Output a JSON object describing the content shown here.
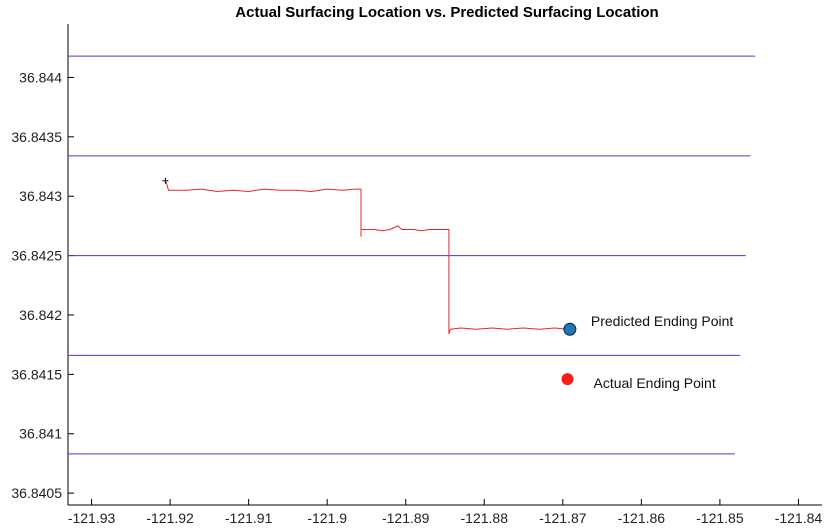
{
  "chart_data": {
    "type": "line",
    "title": "Actual Surfacing Location vs. Predicted Surfacing Location",
    "xlabel": "",
    "ylabel": "",
    "xlim": [
      -121.933,
      -121.837
    ],
    "ylim": [
      36.8404,
      36.84445
    ],
    "x_ticks": [
      {
        "value": -121.93,
        "label": "-121.93"
      },
      {
        "value": -121.92,
        "label": "-121.92"
      },
      {
        "value": -121.91,
        "label": "-121.91"
      },
      {
        "value": -121.9,
        "label": "-121.9"
      },
      {
        "value": -121.89,
        "label": "-121.89"
      },
      {
        "value": -121.88,
        "label": "-121.88"
      },
      {
        "value": -121.87,
        "label": "-121.87"
      },
      {
        "value": -121.86,
        "label": "-121.86"
      },
      {
        "value": -121.85,
        "label": "-121.85"
      },
      {
        "value": -121.84,
        "label": "-121.84"
      }
    ],
    "y_ticks": [
      {
        "value": 36.8405,
        "label": "36.8405"
      },
      {
        "value": 36.841,
        "label": "36.841"
      },
      {
        "value": 36.8415,
        "label": "36.8415"
      },
      {
        "value": 36.842,
        "label": "36.842"
      },
      {
        "value": 36.8425,
        "label": "36.8425"
      },
      {
        "value": 36.843,
        "label": "36.843"
      },
      {
        "value": 36.8435,
        "label": "36.8435"
      },
      {
        "value": 36.844,
        "label": "36.844"
      }
    ],
    "grid": false,
    "color_track": "#e8262b",
    "color_lane": "#3d3de0",
    "lanes": [
      {
        "y": 36.84418,
        "x_start": -121.933,
        "x_end": -121.8455
      },
      {
        "y": 36.84334,
        "x_start": -121.933,
        "x_end": -121.8461
      },
      {
        "y": 36.8425,
        "x_start": -121.933,
        "x_end": -121.8467
      },
      {
        "y": 36.84166,
        "x_start": -121.933,
        "x_end": -121.8474
      },
      {
        "y": 36.84083,
        "x_start": -121.933,
        "x_end": -121.8481
      }
    ],
    "track": [
      [
        -121.9205,
        36.84312
      ],
      [
        -121.9202,
        36.84305
      ],
      [
        -121.92,
        36.84305
      ],
      [
        -121.918,
        36.84305
      ],
      [
        -121.916,
        36.84306
      ],
      [
        -121.914,
        36.84304
      ],
      [
        -121.912,
        36.84305
      ],
      [
        -121.91,
        36.84304
      ],
      [
        -121.908,
        36.84306
      ],
      [
        -121.906,
        36.84305
      ],
      [
        -121.904,
        36.84305
      ],
      [
        -121.902,
        36.84304
      ],
      [
        -121.9,
        36.84306
      ],
      [
        -121.898,
        36.84305
      ],
      [
        -121.8965,
        36.84306
      ],
      [
        -121.8957,
        36.84306
      ],
      [
        -121.8957,
        36.84266
      ],
      [
        -121.8957,
        36.84272
      ],
      [
        -121.8953,
        36.84272
      ],
      [
        -121.894,
        36.84272
      ],
      [
        -121.893,
        36.84271
      ],
      [
        -121.892,
        36.84272
      ],
      [
        -121.891,
        36.84275
      ],
      [
        -121.8905,
        36.84272
      ],
      [
        -121.889,
        36.84272
      ],
      [
        -121.888,
        36.84271
      ],
      [
        -121.887,
        36.84272
      ],
      [
        -121.8862,
        36.84272
      ],
      [
        -121.8845,
        36.84272
      ],
      [
        -121.8845,
        36.84195
      ],
      [
        -121.8845,
        36.84184
      ],
      [
        -121.8843,
        36.84188
      ],
      [
        -121.883,
        36.84189
      ],
      [
        -121.881,
        36.84188
      ],
      [
        -121.879,
        36.84189
      ],
      [
        -121.877,
        36.84188
      ],
      [
        -121.875,
        36.84189
      ],
      [
        -121.873,
        36.84188
      ],
      [
        -121.871,
        36.84189
      ],
      [
        -121.8695,
        36.84188
      ]
    ],
    "start_marker": {
      "x": -121.9206,
      "y": 36.84313,
      "symbol": "+"
    },
    "points": [
      {
        "label": "Predicted Ending Point",
        "x": -121.8691,
        "y": 36.84188,
        "color": "#1f77b4"
      },
      {
        "label": "Actual Ending Point",
        "x": -121.8694,
        "y": 36.84146,
        "color": "#ff1a1a"
      }
    ]
  }
}
